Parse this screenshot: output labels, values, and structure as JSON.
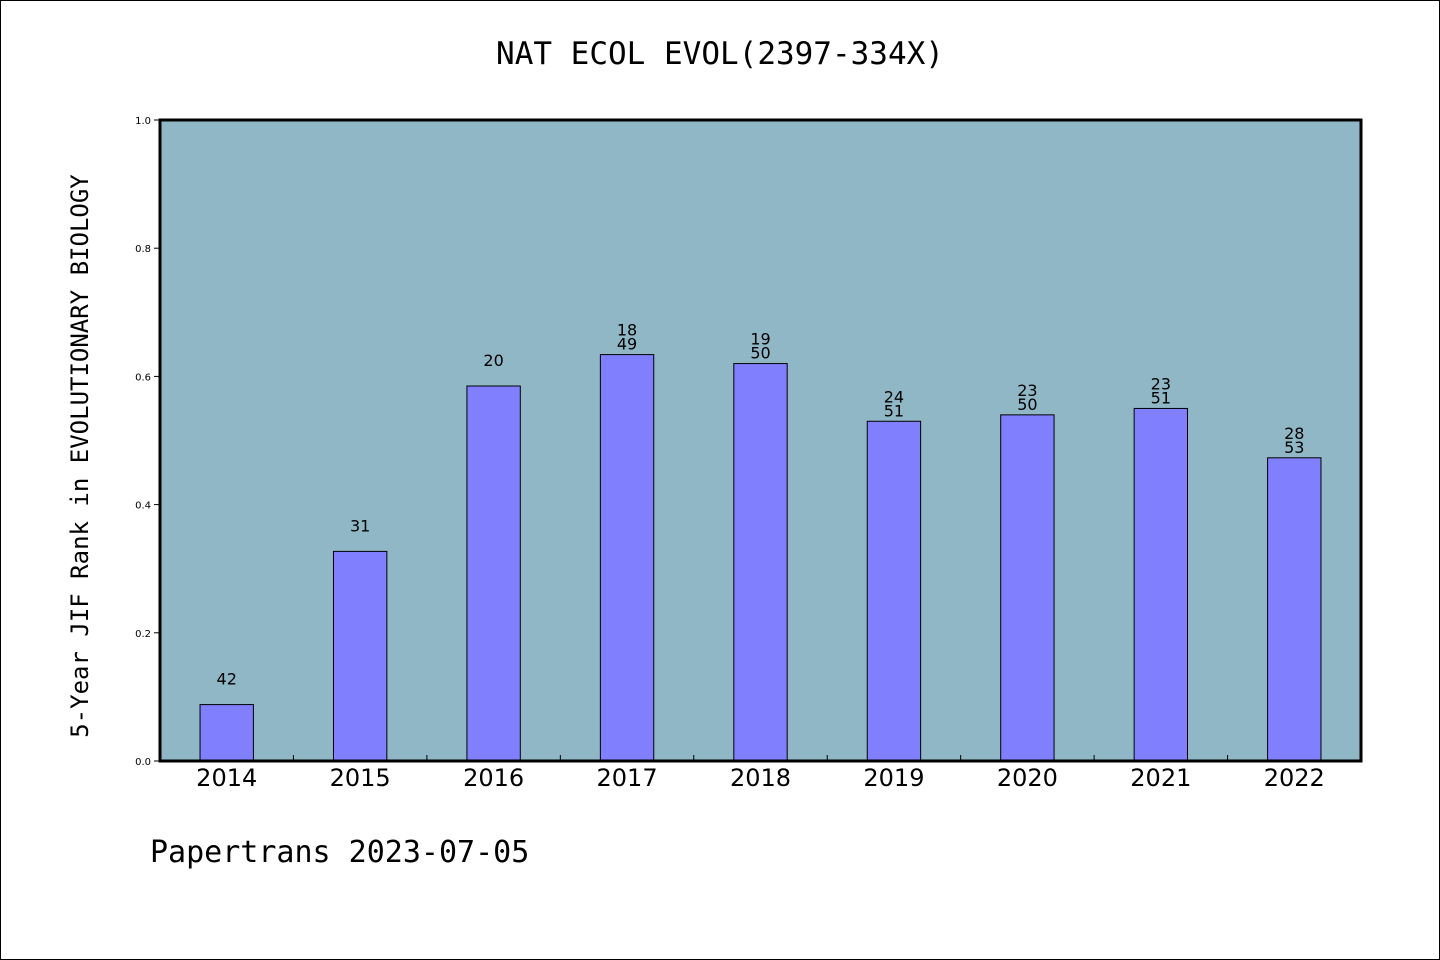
{
  "chart_data": {
    "type": "bar",
    "title": "NAT ECOL EVOL(2397-334X)",
    "xlabel": "",
    "ylabel": "5-Year JIF Rank in EVOLUTIONARY BIOLOGY",
    "ylim": [
      0,
      1.0
    ],
    "yticks": [
      "0.0",
      "0.2",
      "0.4",
      "0.6",
      "0.8",
      "1.0"
    ],
    "categories": [
      "2014",
      "2015",
      "2016",
      "2017",
      "2018",
      "2019",
      "2020",
      "2021",
      "2022"
    ],
    "values": [
      0.088,
      0.327,
      0.585,
      0.634,
      0.62,
      0.53,
      0.54,
      0.55,
      0.473
    ],
    "data_labels": [
      [
        "42"
      ],
      [
        "31"
      ],
      [
        "20"
      ],
      [
        "18",
        "49"
      ],
      [
        "19",
        "50"
      ],
      [
        "24",
        "51"
      ],
      [
        "23",
        "50"
      ],
      [
        "23",
        "51"
      ],
      [
        "28",
        "53"
      ]
    ],
    "grid": false,
    "colors": {
      "plot_background": "#90b7c6",
      "bar": "#8080ff",
      "axes": "#000000"
    }
  },
  "footer": {
    "text": "Papertrans 2023-07-05"
  }
}
